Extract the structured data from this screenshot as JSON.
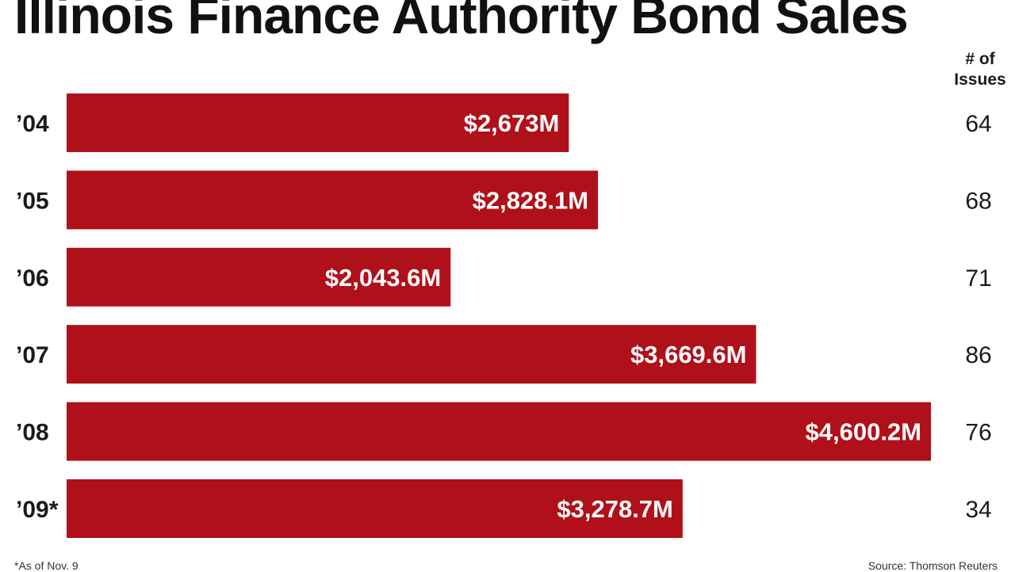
{
  "title": "Illinois Finance Authority Bond Sales",
  "issues_header_line1": "# of",
  "issues_header_line2": "Issues",
  "footnote": "*As of Nov. 9",
  "source": "Source: Thomson Reuters",
  "colors": {
    "bar": "#b01019",
    "bar_label": "#ffffff",
    "text": "#1a1a1a"
  },
  "chart_data": {
    "type": "bar",
    "orientation": "horizontal",
    "title": "Illinois Finance Authority Bond Sales",
    "categories": [
      "’04",
      "’05",
      "’06",
      "’07",
      "’08",
      "’09*"
    ],
    "series": [
      {
        "values": [
          2673,
          2828.1,
          2043.6,
          3669.6,
          4600.2,
          3278.7
        ],
        "labels": [
          "$2,673M",
          "$2,828.1M",
          "$2,043.6M",
          "$3,669.6M",
          "$4,600.2M",
          "$3,278.7M"
        ]
      }
    ],
    "issues": [
      "64",
      "68",
      "71",
      "86",
      "76",
      "34"
    ],
    "xlim": [
      0,
      4600.2
    ],
    "grid": false,
    "legend": "none"
  }
}
